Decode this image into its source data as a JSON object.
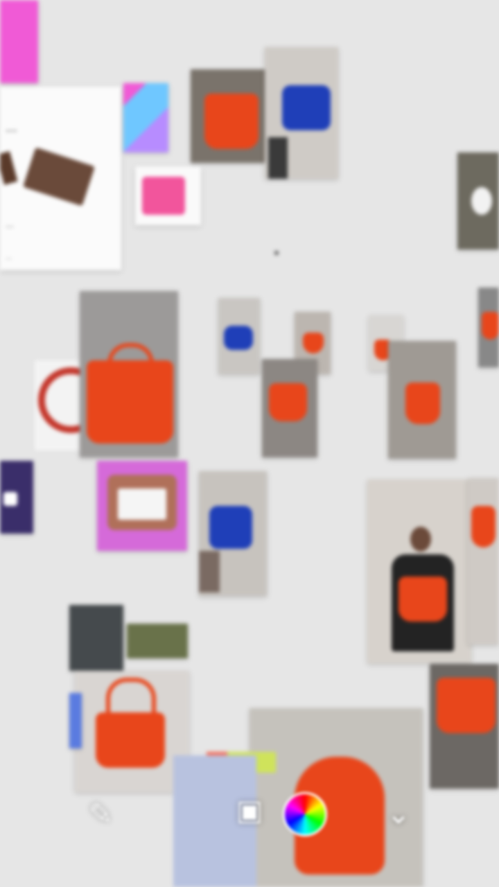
{
  "app": {
    "name": "",
    "screen": "mood board canvas"
  },
  "board": {
    "text_card": {
      "heading": "...",
      "body": "...",
      "caption": "..."
    }
  },
  "toolbar": {
    "items": [
      {
        "name": "brush",
        "icon": "brush-icon"
      },
      {
        "name": "sticker",
        "icon": "sticker-icon"
      },
      {
        "name": "color",
        "icon": "color-wheel-icon"
      },
      {
        "name": "more",
        "icon": "chevron-icon"
      }
    ]
  },
  "colors": {
    "background": "#e6e6e6",
    "accent_orange": "#e8461b",
    "accent_blue": "#1f3fb8",
    "accent_pink": "#f05ad6"
  }
}
